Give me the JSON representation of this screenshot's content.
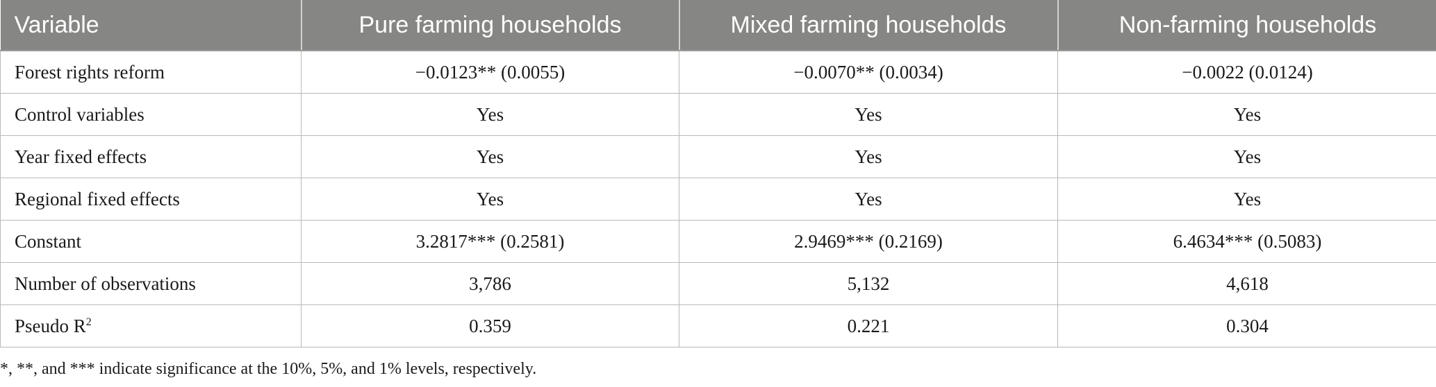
{
  "table": {
    "headers": [
      "Variable",
      "Pure farming households",
      "Mixed farming households",
      "Non-farming households"
    ],
    "rows": [
      {
        "label": "Forest rights reform",
        "values": [
          "−0.0123** (0.0055)",
          "−0.0070** (0.0034)",
          "−0.0022 (0.0124)"
        ]
      },
      {
        "label": "Control variables",
        "values": [
          "Yes",
          "Yes",
          "Yes"
        ]
      },
      {
        "label": "Year fixed effects",
        "values": [
          "Yes",
          "Yes",
          "Yes"
        ]
      },
      {
        "label": "Regional fixed effects",
        "values": [
          "Yes",
          "Yes",
          "Yes"
        ]
      },
      {
        "label": "Constant",
        "values": [
          "3.2817*** (0.2581)",
          "2.9469*** (0.2169)",
          "6.4634*** (0.5083)"
        ]
      },
      {
        "label": "Number of observations",
        "values": [
          "3,786",
          "5,132",
          "4,618"
        ]
      },
      {
        "label": "Pseudo R",
        "label_sup": "2",
        "values": [
          "0.359",
          "0.221",
          "0.304"
        ]
      }
    ]
  },
  "footnote": "*, **, and *** indicate significance at the 10%, 5%, and 1% levels, respectively."
}
